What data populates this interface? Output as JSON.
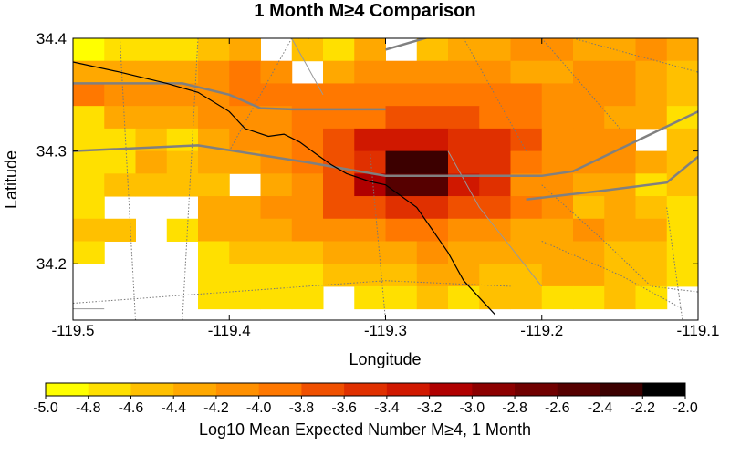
{
  "chart_data": {
    "type": "heatmap",
    "title": "1 Month M≥4 Comparison",
    "xlabel": "Longitude",
    "ylabel": "Latitude",
    "xlim": [
      -119.5,
      -119.1
    ],
    "ylim": [
      34.15,
      34.4
    ],
    "x_ticks": [
      -119.5,
      -119.4,
      -119.3,
      -119.2,
      -119.1
    ],
    "x_tick_labels": [
      "-119.5",
      "-119.4",
      "-119.3",
      "-119.2",
      "-119.1"
    ],
    "y_ticks": [
      34.2,
      34.3,
      34.4
    ],
    "y_tick_labels": [
      "34.2",
      "34.3",
      "34.4"
    ],
    "cell_size_deg": 0.02,
    "colorbar": {
      "label": "Log10 Mean Expected Number M≥4, 1 Month",
      "range": [
        -5.0,
        -2.0
      ],
      "tick_labels": [
        "-5.0",
        "-4.8",
        "-4.6",
        "-4.4",
        "-4.2",
        "-4.0",
        "-3.8",
        "-3.6",
        "-3.4",
        "-3.2",
        "-3.0",
        "-2.8",
        "-2.6",
        "-2.4",
        "-2.2",
        "-2.0"
      ],
      "colors": [
        "#ffff00",
        "#ffe000",
        "#ffc000",
        "#ffa800",
        "#ff9000",
        "#ff7800",
        "#f05000",
        "#e03000",
        "#d01800",
        "#b00000",
        "#8c0000",
        "#700000",
        "#560000",
        "#3c0000",
        "#000000"
      ]
    },
    "grid_values": [
      [
        -5.0,
        -4.7,
        -4.7,
        -4.7,
        -4.5,
        -4.3,
        null,
        -4.5,
        -4.7,
        -4.3,
        null,
        -4.5,
        -4.3,
        -4.3,
        -4.1,
        -4.1,
        -4.3,
        -4.3,
        -4.1,
        -4.3
      ],
      [
        -4.3,
        -4.3,
        -4.3,
        -4.3,
        -4.1,
        -3.9,
        -4.1,
        null,
        -4.3,
        -4.1,
        -4.1,
        -4.1,
        -4.1,
        -4.1,
        -4.3,
        -4.3,
        -4.1,
        -4.1,
        -4.3,
        -4.5
      ],
      [
        -3.9,
        -4.1,
        -4.1,
        -4.1,
        -4.1,
        -3.9,
        -3.9,
        -3.9,
        -3.9,
        -3.9,
        -3.9,
        -3.9,
        -3.9,
        -3.9,
        -3.9,
        -4.1,
        -4.1,
        -4.1,
        -4.3,
        -4.5
      ],
      [
        -4.7,
        -4.3,
        -4.3,
        -4.3,
        -4.1,
        -4.1,
        -4.1,
        -3.9,
        -3.9,
        -3.9,
        -3.7,
        -3.7,
        -3.7,
        -3.9,
        -3.9,
        -4.1,
        -4.1,
        -4.3,
        -4.3,
        -4.7
      ],
      [
        -4.7,
        -4.7,
        -4.5,
        -4.7,
        -4.3,
        -4.1,
        -4.1,
        -3.9,
        -3.7,
        -3.3,
        -3.3,
        -3.3,
        -3.5,
        -3.5,
        -3.7,
        -4.1,
        -4.1,
        -4.1,
        null,
        -4.5
      ],
      [
        -4.7,
        -4.7,
        -4.3,
        -4.5,
        -4.3,
        -4.3,
        -4.1,
        -3.9,
        -3.7,
        -3.5,
        -2.2,
        -2.2,
        -3.5,
        -3.5,
        -3.9,
        -4.1,
        -4.1,
        -4.1,
        -4.3,
        -4.5
      ],
      [
        -4.7,
        -4.5,
        -4.5,
        -4.5,
        -4.5,
        null,
        -4.3,
        -4.1,
        -3.7,
        -3.1,
        -2.5,
        -2.5,
        -3.3,
        -3.5,
        -4.1,
        -4.1,
        -4.3,
        -4.3,
        -4.7,
        -4.5
      ],
      [
        -4.7,
        null,
        null,
        null,
        -4.3,
        -4.3,
        -4.1,
        -4.1,
        -3.7,
        -3.7,
        -3.5,
        -3.5,
        -3.7,
        -3.7,
        -3.9,
        -4.1,
        -4.5,
        -4.3,
        -4.5,
        -4.7
      ],
      [
        -4.5,
        -4.5,
        null,
        -4.7,
        -4.3,
        -4.3,
        -4.3,
        -4.1,
        -4.1,
        -4.1,
        -3.9,
        -3.9,
        -4.1,
        -4.1,
        -4.3,
        -4.3,
        -4.1,
        -4.3,
        -4.3,
        -4.7
      ],
      [
        -4.7,
        null,
        null,
        null,
        -4.7,
        -4.5,
        -4.5,
        -4.5,
        -4.3,
        -4.3,
        -4.3,
        -4.1,
        -4.3,
        -4.3,
        -4.3,
        -4.3,
        -4.3,
        -4.5,
        -4.5,
        -4.7
      ],
      [
        null,
        null,
        null,
        null,
        -4.7,
        -4.7,
        -4.7,
        -4.7,
        -4.5,
        -4.5,
        -4.5,
        -4.3,
        -4.3,
        -4.5,
        -4.5,
        -4.3,
        -4.3,
        -4.5,
        -4.5,
        -4.7
      ],
      [
        null,
        null,
        null,
        null,
        -4.7,
        -4.7,
        -4.7,
        -4.7,
        null,
        -4.7,
        -4.7,
        -4.5,
        -4.7,
        -4.5,
        -4.5,
        -4.7,
        -4.7,
        -4.5,
        -4.7,
        null
      ]
    ],
    "grid_lat_top": 34.4,
    "grid_lon_left": -119.5,
    "overlays": {
      "coastline": [
        [
          -119.5,
          34.379
        ],
        [
          -119.47,
          34.37
        ],
        [
          -119.44,
          34.36
        ],
        [
          -119.42,
          34.352
        ],
        [
          -119.4,
          34.335
        ],
        [
          -119.39,
          34.32
        ],
        [
          -119.375,
          34.313
        ],
        [
          -119.365,
          34.315
        ],
        [
          -119.355,
          34.308
        ],
        [
          -119.345,
          34.298
        ],
        [
          -119.335,
          34.288
        ],
        [
          -119.325,
          34.28
        ],
        [
          -119.31,
          34.273
        ],
        [
          -119.3,
          34.27
        ],
        [
          -119.29,
          34.26
        ],
        [
          -119.28,
          34.25
        ],
        [
          -119.27,
          34.23
        ],
        [
          -119.26,
          34.21
        ],
        [
          -119.25,
          34.185
        ],
        [
          -119.24,
          34.17
        ],
        [
          -119.23,
          34.155
        ]
      ],
      "faults_solid": [
        [
          [
            -119.5,
            34.36
          ],
          [
            -119.43,
            34.36
          ],
          [
            -119.4,
            34.35
          ],
          [
            -119.38,
            34.338
          ],
          [
            -119.36,
            34.337
          ],
          [
            -119.3,
            34.337
          ]
        ],
        [
          [
            -119.5,
            34.3
          ],
          [
            -119.42,
            34.305
          ],
          [
            -119.35,
            34.29
          ],
          [
            -119.3,
            34.278
          ],
          [
            -119.2,
            34.278
          ],
          [
            -119.18,
            34.282
          ],
          [
            -119.1,
            34.335
          ]
        ],
        [
          [
            -119.21,
            34.257
          ],
          [
            -119.16,
            34.265
          ],
          [
            -119.12,
            34.272
          ],
          [
            -119.1,
            34.295
          ]
        ],
        [
          [
            -119.35,
            34.4
          ],
          [
            -119.33,
            34.41
          ]
        ],
        [
          [
            -119.3,
            34.39
          ],
          [
            -119.27,
            34.402
          ]
        ]
      ],
      "faults_dotted": [
        [
          [
            -119.5,
            34.165
          ],
          [
            -119.3,
            34.185
          ],
          [
            -119.22,
            34.18
          ]
        ],
        [
          [
            -119.47,
            34.4
          ],
          [
            -119.46,
            34.15
          ]
        ],
        [
          [
            -119.42,
            34.4
          ],
          [
            -119.43,
            34.15
          ]
        ],
        [
          [
            -119.36,
            34.4
          ],
          [
            -119.4,
            34.3
          ]
        ],
        [
          [
            -119.31,
            34.3
          ],
          [
            -119.3,
            34.15
          ]
        ],
        [
          [
            -119.25,
            34.4
          ],
          [
            -119.23,
            34.35
          ],
          [
            -119.21,
            34.3
          ]
        ],
        [
          [
            -119.2,
            34.4
          ],
          [
            -119.15,
            34.32
          ]
        ],
        [
          [
            -119.18,
            34.4
          ],
          [
            -119.1,
            34.37
          ]
        ],
        [
          [
            -119.2,
            34.27
          ],
          [
            -119.16,
            34.22
          ],
          [
            -119.13,
            34.18
          ],
          [
            -119.1,
            34.175
          ]
        ],
        [
          [
            -119.12,
            34.25
          ],
          [
            -119.11,
            34.15
          ]
        ],
        [
          [
            -119.2,
            34.22
          ],
          [
            -119.15,
            34.19
          ],
          [
            -119.11,
            34.16
          ]
        ]
      ],
      "faults_gray_thin": [
        [
          [
            -119.2,
            34.18
          ],
          [
            -119.24,
            34.25
          ],
          [
            -119.26,
            34.3
          ]
        ],
        [
          [
            -119.36,
            34.4
          ],
          [
            -119.34,
            34.35
          ]
        ],
        [
          [
            -119.5,
            34.16
          ],
          [
            -119.48,
            34.16
          ]
        ]
      ]
    }
  }
}
